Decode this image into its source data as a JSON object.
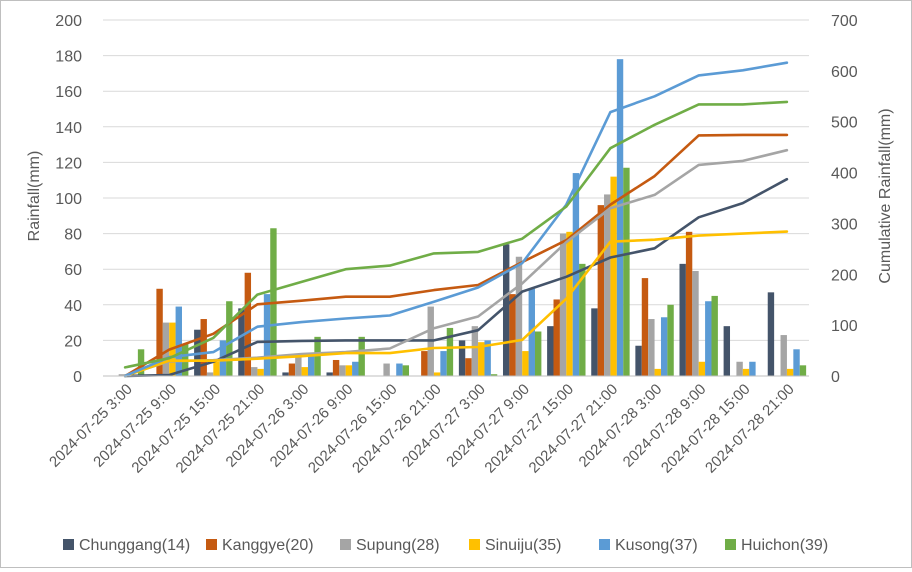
{
  "chart_data": {
    "type": "bar+line",
    "ylabel": "Rainfall(mm)",
    "y2label": "Cumulative Rainfall(mm)",
    "ylim": [
      0,
      200
    ],
    "y2lim": [
      0,
      700
    ],
    "yticks": [
      0,
      20,
      40,
      60,
      80,
      100,
      120,
      140,
      160,
      180,
      200
    ],
    "y2ticks": [
      0,
      100,
      200,
      300,
      400,
      500,
      600,
      700
    ],
    "categories": [
      "2024-07-25 3:00",
      "2024-07-25 9:00",
      "2024-07-25 15:00",
      "2024-07-25 21:00",
      "2024-07-26 3:00",
      "2024-07-26 9:00",
      "2024-07-26 15:00",
      "2024-07-26 21:00",
      "2024-07-27 3:00",
      "2024-07-27 9:00",
      "2024-07-27 15:00",
      "2024-07-27 21:00",
      "2024-07-28 3:00",
      "2024-07-28 9:00",
      "2024-07-28 15:00",
      "2024-07-28 21:00"
    ],
    "legend_position": "bottom",
    "series": [
      {
        "name": "Chunggang(14)",
        "color": "#44546a",
        "bars": [
          0,
          0,
          26,
          38,
          2,
          2,
          0,
          0,
          20,
          74,
          28,
          38,
          17,
          63,
          28,
          47
        ],
        "cumulative": [
          0,
          2,
          28,
          67,
          69,
          70,
          70,
          70,
          90,
          166,
          195,
          233,
          251,
          312,
          340,
          387
        ]
      },
      {
        "name": "Kanggye(20)",
        "color": "#c55a11",
        "bars": [
          0,
          49,
          32,
          58,
          7,
          9,
          0,
          14,
          10,
          46,
          43,
          96,
          55,
          81,
          0,
          0
        ],
        "cumulative": [
          0,
          52,
          83,
          141,
          148,
          156,
          156,
          169,
          179,
          224,
          267,
          337,
          393,
          473,
          474,
          474
        ]
      },
      {
        "name": "Supung(28)",
        "color": "#a5a5a5",
        "bars": [
          1,
          30,
          2,
          5,
          12,
          6,
          7,
          39,
          28,
          67,
          80,
          102,
          32,
          59,
          8,
          23
        ],
        "cumulative": [
          1,
          29,
          31,
          36,
          43,
          47,
          54,
          94,
          117,
          182,
          263,
          330,
          356,
          415,
          423,
          444
        ]
      },
      {
        "name": "Sinuiju(35)",
        "color": "#ffc000",
        "bars": [
          0,
          30,
          8,
          4,
          5,
          6,
          0,
          2,
          19,
          14,
          81,
          112,
          4,
          8,
          4,
          4
        ],
        "cumulative": [
          0,
          30,
          30,
          34,
          39,
          45,
          45,
          55,
          57,
          71,
          152,
          264,
          268,
          276,
          280,
          284
        ]
      },
      {
        "name": "Kusong(37)",
        "color": "#5b9bd5",
        "bars": [
          0,
          39,
          20,
          46,
          12,
          8,
          7,
          14,
          20,
          49,
          114,
          178,
          33,
          42,
          8,
          15
        ],
        "cumulative": [
          0,
          37,
          47,
          97,
          106,
          113,
          119,
          146,
          174,
          222,
          337,
          519,
          550,
          591,
          601,
          616
        ]
      },
      {
        "name": "Huichon(39)",
        "color": "#70ad47",
        "bars": [
          15,
          18,
          42,
          83,
          22,
          22,
          6,
          27,
          1,
          25,
          63,
          117,
          40,
          45,
          0,
          6
        ],
        "cumulative": [
          17,
          35,
          75,
          160,
          185,
          210,
          217,
          241,
          244,
          270,
          333,
          448,
          494,
          534,
          534,
          539
        ]
      }
    ]
  }
}
